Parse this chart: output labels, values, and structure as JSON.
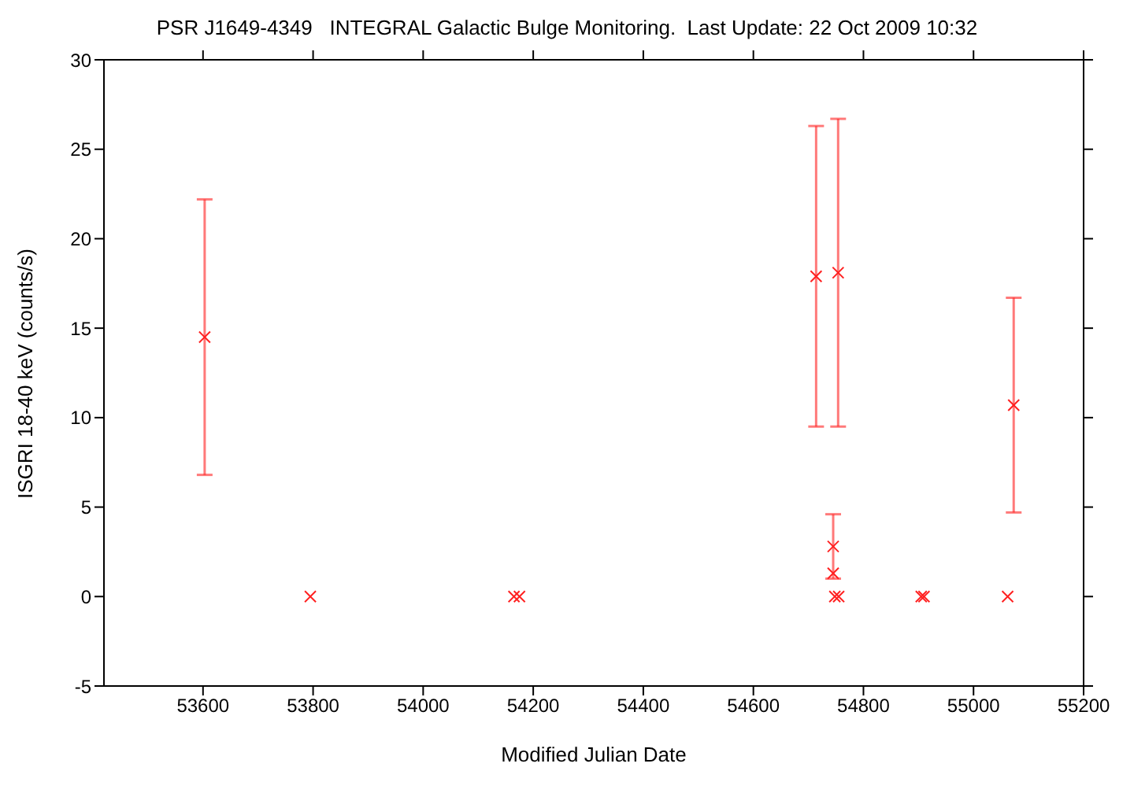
{
  "chart_data": {
    "type": "scatter",
    "title": "PSR J1649-4349   INTEGRAL Galactic Bulge Monitoring.  Last Update: 22 Oct 2009 10:32",
    "xlabel": "Modified Julian Date",
    "ylabel": "ISGRI 18-40 keV (counts/s)",
    "x": [
      53603,
      53795,
      54165,
      54175,
      54714,
      54754,
      54745,
      54745,
      54748,
      54755,
      54905,
      54910,
      55062,
      55073
    ],
    "values": [
      14.5,
      0,
      0,
      0,
      17.9,
      18.1,
      2.8,
      1.3,
      0,
      0,
      0,
      0,
      0,
      10.7
    ],
    "errors": [
      7.7,
      null,
      null,
      null,
      8.4,
      8.6,
      1.8,
      null,
      null,
      null,
      null,
      null,
      null,
      6.0
    ],
    "color": "#ff2020",
    "marker": "cross",
    "xlim": [
      53420,
      55200
    ],
    "xticks": [
      53600,
      53800,
      54000,
      54200,
      54400,
      54600,
      54800,
      55000,
      55200
    ],
    "ylim": [
      -5,
      30
    ],
    "yticks": [
      -5,
      0,
      5,
      10,
      15,
      20,
      25,
      30
    ]
  }
}
